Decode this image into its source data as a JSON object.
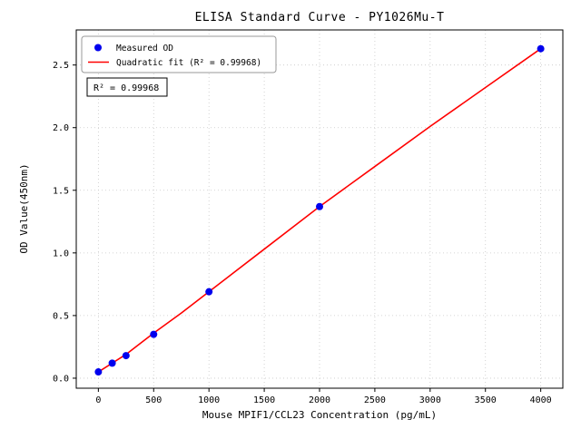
{
  "chart_data": {
    "type": "scatter",
    "title": "ELISA Standard Curve - PY1026Mu-T",
    "xlabel": "Mouse MPIF1/CCL23 Concentration (pg/mL)",
    "ylabel": "OD Value(450nm)",
    "xlim": [
      -200,
      4200
    ],
    "ylim": [
      -0.08,
      2.78
    ],
    "x_ticks": [
      0,
      500,
      1000,
      1500,
      2000,
      2500,
      3000,
      3500,
      4000
    ],
    "y_ticks": [
      0.0,
      0.5,
      1.0,
      1.5,
      2.0,
      2.5
    ],
    "grid": true,
    "legend_position": "upper-left",
    "colors": {
      "scatter": "#0000ee",
      "fit_line": "#ff0000",
      "grid": "#c8c8c8",
      "frame": "#000000",
      "background": "#ffffff"
    },
    "legend": {
      "entries": [
        {
          "label": "Measured OD",
          "handle": "marker",
          "color": "#0000ee"
        },
        {
          "label": "Quadratic fit (R² = 0.99968)",
          "handle": "line",
          "color": "#ff0000"
        }
      ]
    },
    "annotation": {
      "text": "R² = 0.99968"
    },
    "series": [
      {
        "name": "Measured OD",
        "type": "scatter",
        "color": "#0000ee",
        "points": [
          [
            0,
            0.05
          ],
          [
            125,
            0.12
          ],
          [
            250,
            0.18
          ],
          [
            500,
            0.35
          ],
          [
            1000,
            0.69
          ],
          [
            2000,
            1.37
          ],
          [
            4000,
            2.63
          ]
        ]
      },
      {
        "name": "Quadratic fit",
        "type": "line",
        "color": "#ff0000",
        "points": [
          [
            0,
            0.05
          ],
          [
            250,
            0.19
          ],
          [
            500,
            0.36
          ],
          [
            750,
            0.52
          ],
          [
            1000,
            0.69
          ],
          [
            1500,
            1.03
          ],
          [
            2000,
            1.37
          ],
          [
            2500,
            1.69
          ],
          [
            3000,
            2.01
          ],
          [
            3500,
            2.32
          ],
          [
            4000,
            2.63
          ]
        ]
      }
    ]
  }
}
